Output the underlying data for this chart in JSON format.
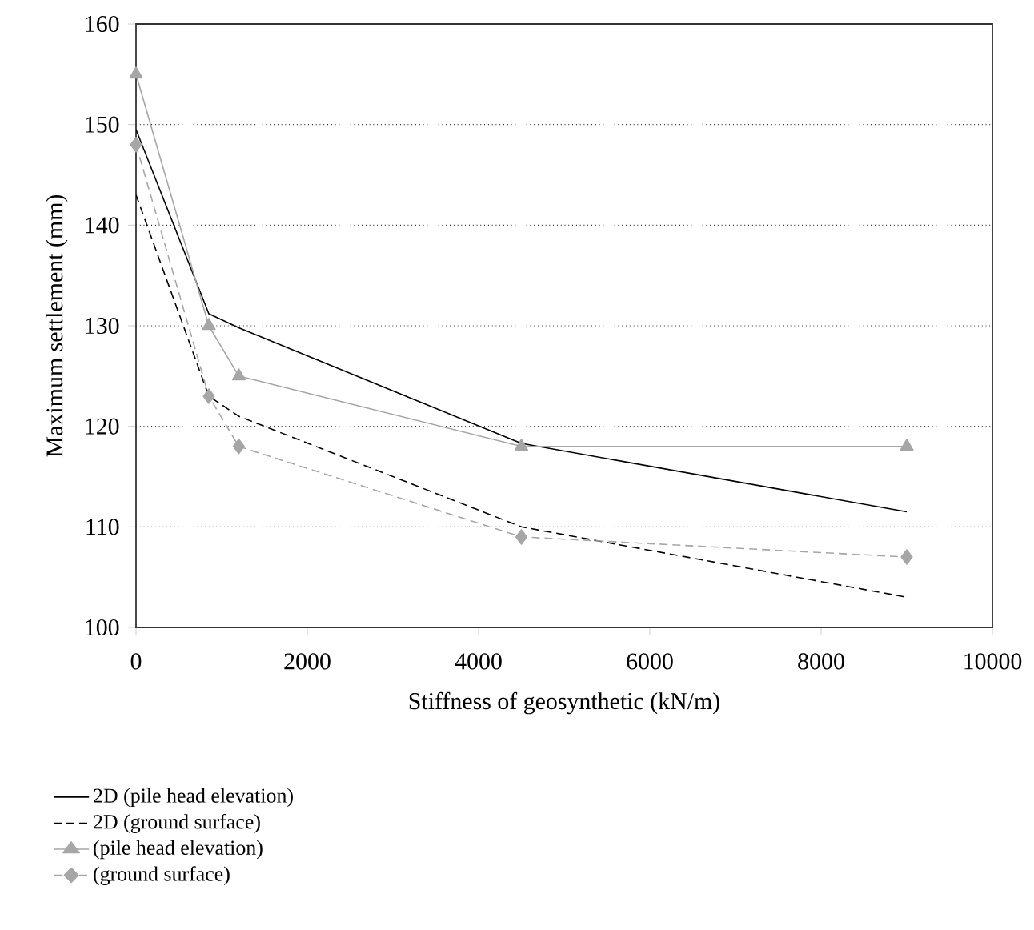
{
  "chart_data": {
    "type": "line",
    "xlabel": "Stiffness of geosynthetic (kN/m)",
    "ylabel": "Maximum settlement (mm)",
    "xlim": [
      0,
      10000
    ],
    "xticks": [
      0,
      2000,
      4000,
      6000,
      8000,
      10000
    ],
    "ylim": [
      100,
      160
    ],
    "yticks": [
      100,
      110,
      120,
      130,
      140,
      150,
      160
    ],
    "grid": "y",
    "legend": "bottom",
    "series": [
      {
        "name": "2D (pile head elevation)",
        "color": "#000000",
        "line_style": "solid",
        "marker": "none",
        "x": [
          0,
          850,
          1200,
          4500,
          9000
        ],
        "values": [
          149.5,
          131.2,
          129.8,
          118.3,
          111.5
        ]
      },
      {
        "name": "2D (ground surface)",
        "color": "#000000",
        "line_style": "dashed",
        "marker": "none",
        "x": [
          0,
          850,
          1200,
          4500,
          9000
        ],
        "values": [
          143,
          123,
          121,
          110,
          103
        ]
      },
      {
        "name": "(pile head elevation)",
        "color": "#a6a6a6",
        "line_style": "solid",
        "marker": "triangle",
        "x": [
          0,
          850,
          1200,
          4500,
          9000
        ],
        "values": [
          155,
          130,
          125,
          118,
          118
        ]
      },
      {
        "name": "(ground surface)",
        "color": "#a6a6a6",
        "line_style": "dashed",
        "marker": "diamond",
        "x": [
          0,
          850,
          1200,
          4500,
          9000
        ],
        "values": [
          148,
          123,
          118,
          109,
          107
        ]
      }
    ]
  }
}
